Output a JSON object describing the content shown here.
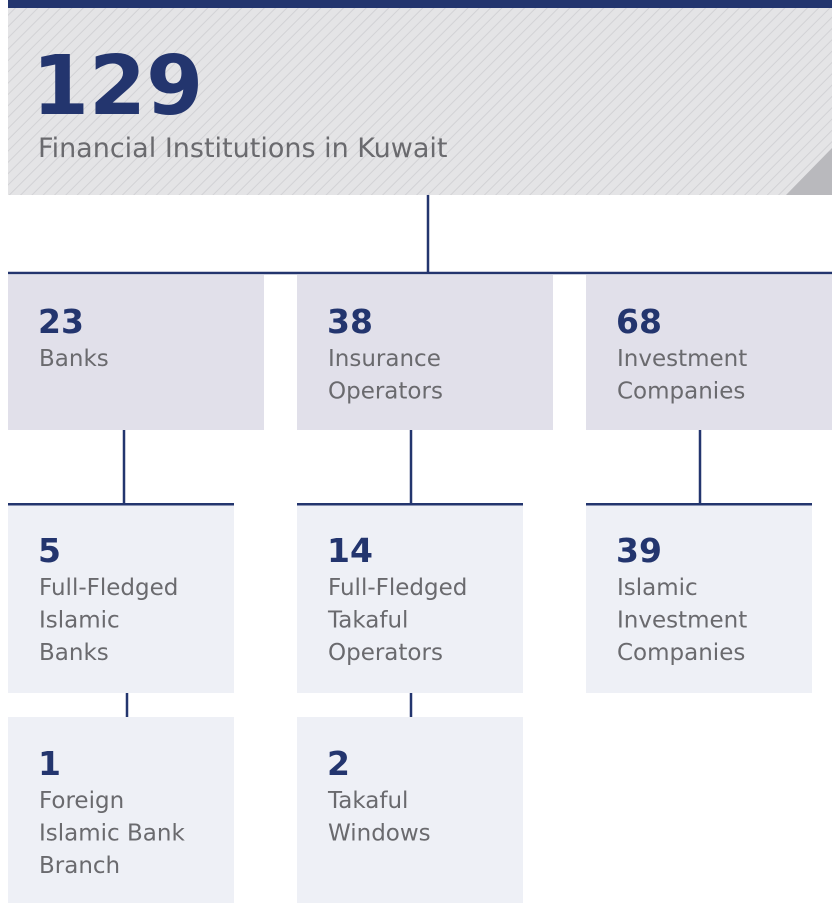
{
  "header": {
    "number": 129,
    "label": "Financial Institutions in Kuwait"
  },
  "nodes": [
    {
      "number": 23,
      "lines": [
        "Banks"
      ]
    },
    {
      "number": 38,
      "lines": [
        "Insurance",
        "Operators"
      ]
    },
    {
      "number": 68,
      "lines": [
        "Investment",
        "Companies"
      ]
    },
    {
      "number": 5,
      "lines": [
        "Full-Fledged",
        "Islamic",
        "Banks"
      ]
    },
    {
      "number": 14,
      "lines": [
        "Full-Fledged",
        "Takaful",
        "Operators"
      ]
    },
    {
      "number": 39,
      "lines": [
        "Islamic",
        "Investment",
        "Companies"
      ]
    },
    {
      "number": 1,
      "lines": [
        "Foreign",
        "Islamic Bank",
        "Branch"
      ]
    },
    {
      "number": 2,
      "lines": [
        "Takaful",
        "Windows"
      ]
    }
  ]
}
